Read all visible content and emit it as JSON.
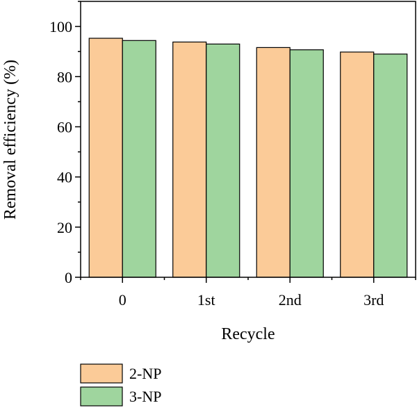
{
  "chart_data": {
    "type": "bar",
    "title": "",
    "xlabel": "Recycle",
    "ylabel": "Removal efficiency (%)",
    "categories": [
      "0",
      "1st",
      "2nd",
      "3rd"
    ],
    "ylim": [
      0,
      110
    ],
    "yticks": [
      0,
      20,
      40,
      60,
      80,
      100
    ],
    "series": [
      {
        "name": "2-NP",
        "color": "#FBCB98",
        "values": [
          95.3,
          93.8,
          91.6,
          89.8
        ]
      },
      {
        "name": "3-NP",
        "color": "#9FD59E",
        "values": [
          94.4,
          93.0,
          90.7,
          89.0
        ]
      }
    ],
    "grid": false,
    "legend_position": "bottom-left"
  }
}
